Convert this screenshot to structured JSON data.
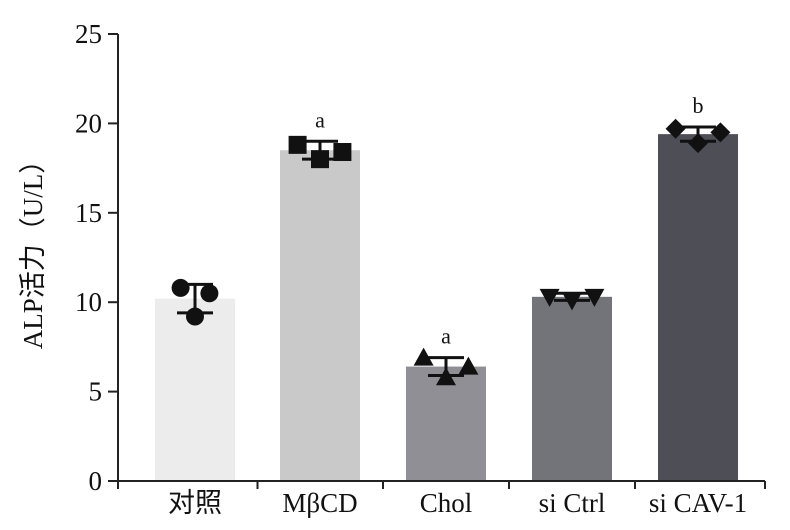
{
  "chart_data": {
    "type": "bar",
    "title": "",
    "xlabel": "",
    "ylabel": "ALP活力（U/L）",
    "ylim": [
      0,
      25
    ],
    "yticks": [
      0,
      5,
      10,
      15,
      20,
      25
    ],
    "grid": false,
    "categories": [
      "对照",
      "MβCD",
      "Chol",
      "si Ctrl",
      "si CAV-1"
    ],
    "values": [
      10.2,
      18.5,
      6.4,
      10.3,
      19.4
    ],
    "error": [
      0.8,
      0.5,
      0.5,
      0.2,
      0.4
    ],
    "significance": [
      "",
      "a",
      "a",
      "",
      "b"
    ],
    "bar_colors": [
      "#ececec",
      "#c9c9c9",
      "#8f8f95",
      "#73737a",
      "#4e4f56"
    ],
    "points": [
      {
        "marker": "circle",
        "values": [
          10.8,
          9.2,
          10.5
        ]
      },
      {
        "marker": "square",
        "values": [
          18.8,
          18.0,
          18.4
        ]
      },
      {
        "marker": "triangle-up",
        "values": [
          6.9,
          5.8,
          6.4
        ]
      },
      {
        "marker": "triangle-down",
        "values": [
          10.3,
          10.1,
          10.3
        ]
      },
      {
        "marker": "diamond",
        "values": [
          19.7,
          18.9,
          19.5
        ]
      }
    ]
  }
}
